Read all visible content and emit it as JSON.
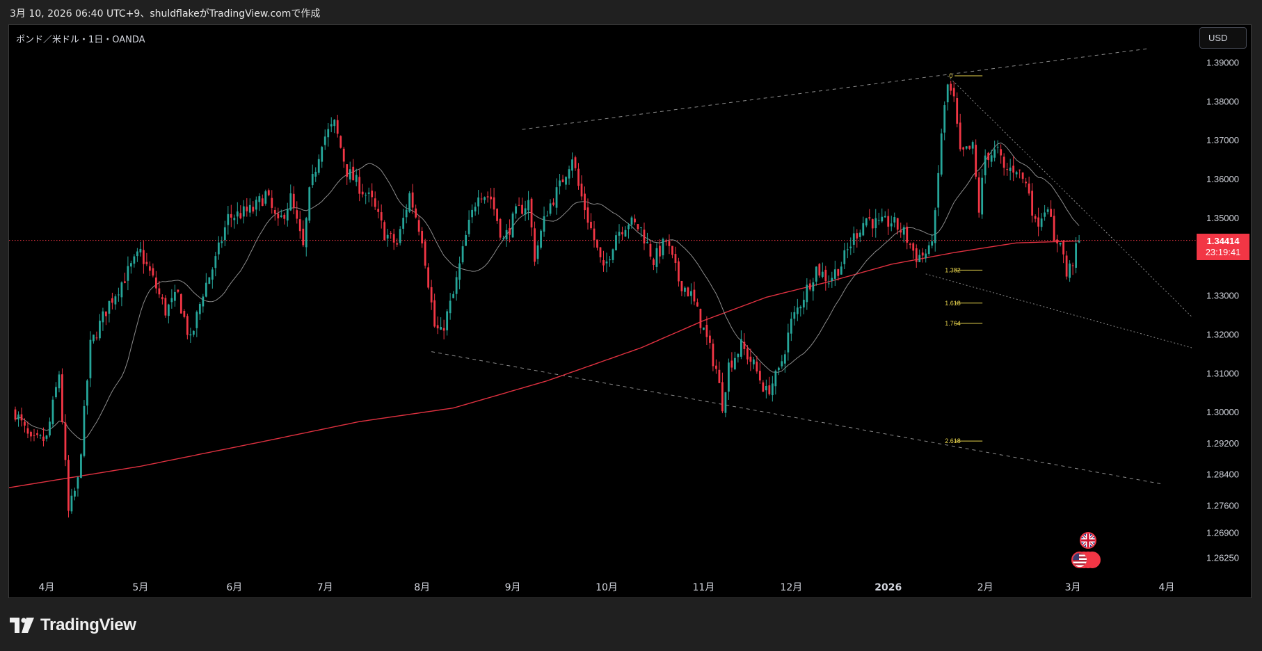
{
  "header": {
    "caption": "3月 10, 2026 06:40 UTC+9、shuldflakeがTradingView.comで作成"
  },
  "chart_header": {
    "symbol": "ポンド／米ドル・1日・OANDA",
    "currency_button": "USD"
  },
  "current_price": {
    "price": "1.34414",
    "countdown": "23:19:41",
    "value": 1.34414,
    "color": "#f23645"
  },
  "footer": {
    "brand": "TradingView"
  },
  "events": {
    "icons": [
      "uk-flag-icon",
      "us-flag-icon"
    ]
  },
  "colors": {
    "up": "#26a69a",
    "down": "#f23645",
    "ma_long": "#e03140",
    "ma_short": "#8c8c8c",
    "fib": "#e8d44d",
    "trend": "#8c8c8c"
  },
  "chart_data": {
    "type": "candlestick",
    "title": "",
    "ylim": [
      1.2585,
      1.3985
    ],
    "y_ticks": [
      "1.39000",
      "1.38000",
      "1.37000",
      "1.36000",
      "1.35000",
      "1.33000",
      "1.32000",
      "1.31000",
      "1.30000",
      "1.29200",
      "1.28400",
      "1.27600",
      "1.26900",
      "1.26250"
    ],
    "y_tick_values": [
      1.39,
      1.38,
      1.37,
      1.36,
      1.35,
      1.33,
      1.32,
      1.31,
      1.3,
      1.292,
      1.284,
      1.276,
      1.269,
      1.2625
    ],
    "x_ticks": [
      {
        "label": "4月",
        "day": 10,
        "bold": false
      },
      {
        "label": "5月",
        "day": 40,
        "bold": false
      },
      {
        "label": "6月",
        "day": 70,
        "bold": false
      },
      {
        "label": "7月",
        "day": 99,
        "bold": false
      },
      {
        "label": "8月",
        "day": 130,
        "bold": false
      },
      {
        "label": "9月",
        "day": 159,
        "bold": false
      },
      {
        "label": "10月",
        "day": 189,
        "bold": false
      },
      {
        "label": "11月",
        "day": 220,
        "bold": false
      },
      {
        "label": "12月",
        "day": 248,
        "bold": false
      },
      {
        "label": "2026",
        "day": 279,
        "bold": true
      },
      {
        "label": "2月",
        "day": 310,
        "bold": false
      },
      {
        "label": "3月",
        "day": 338,
        "bold": false
      },
      {
        "label": "4月",
        "day": 368,
        "bold": false
      }
    ],
    "day_range": [
      -2,
      376
    ],
    "price_waypoints": [
      [
        0,
        1.3
      ],
      [
        5,
        1.292
      ],
      [
        10,
        1.293
      ],
      [
        14,
        1.31
      ],
      [
        17,
        1.274
      ],
      [
        20,
        1.282
      ],
      [
        24,
        1.317
      ],
      [
        30,
        1.328
      ],
      [
        36,
        1.336
      ],
      [
        40,
        1.341
      ],
      [
        44,
        1.334
      ],
      [
        48,
        1.326
      ],
      [
        52,
        1.33
      ],
      [
        56,
        1.318
      ],
      [
        60,
        1.331
      ],
      [
        64,
        1.339
      ],
      [
        68,
        1.35
      ],
      [
        72,
        1.351
      ],
      [
        76,
        1.352
      ],
      [
        80,
        1.356
      ],
      [
        84,
        1.348
      ],
      [
        88,
        1.355
      ],
      [
        92,
        1.342
      ],
      [
        94,
        1.356
      ],
      [
        98,
        1.37
      ],
      [
        102,
        1.374
      ],
      [
        106,
        1.362
      ],
      [
        110,
        1.358
      ],
      [
        114,
        1.354
      ],
      [
        118,
        1.346
      ],
      [
        122,
        1.343
      ],
      [
        126,
        1.356
      ],
      [
        130,
        1.345
      ],
      [
        134,
        1.322
      ],
      [
        136,
        1.32
      ],
      [
        140,
        1.33
      ],
      [
        144,
        1.345
      ],
      [
        148,
        1.357
      ],
      [
        152,
        1.355
      ],
      [
        156,
        1.344
      ],
      [
        160,
        1.351
      ],
      [
        164,
        1.354
      ],
      [
        166,
        1.34
      ],
      [
        170,
        1.352
      ],
      [
        174,
        1.358
      ],
      [
        178,
        1.366
      ],
      [
        180,
        1.358
      ],
      [
        184,
        1.347
      ],
      [
        188,
        1.336
      ],
      [
        192,
        1.346
      ],
      [
        196,
        1.349
      ],
      [
        200,
        1.347
      ],
      [
        204,
        1.339
      ],
      [
        208,
        1.344
      ],
      [
        212,
        1.334
      ],
      [
        216,
        1.33
      ],
      [
        220,
        1.321
      ],
      [
        224,
        1.311
      ],
      [
        226,
        1.302
      ],
      [
        228,
        1.312
      ],
      [
        232,
        1.317
      ],
      [
        236,
        1.312
      ],
      [
        240,
        1.305
      ],
      [
        244,
        1.31
      ],
      [
        248,
        1.323
      ],
      [
        252,
        1.33
      ],
      [
        256,
        1.337
      ],
      [
        260,
        1.334
      ],
      [
        264,
        1.338
      ],
      [
        268,
        1.345
      ],
      [
        272,
        1.35
      ],
      [
        276,
        1.348
      ],
      [
        280,
        1.349
      ],
      [
        284,
        1.346
      ],
      [
        288,
        1.34
      ],
      [
        292,
        1.341
      ],
      [
        294,
        1.35
      ],
      [
        296,
        1.372
      ],
      [
        298,
        1.384
      ],
      [
        300,
        1.38
      ],
      [
        302,
        1.366
      ],
      [
        306,
        1.368
      ],
      [
        308,
        1.352
      ],
      [
        310,
        1.366
      ],
      [
        314,
        1.367
      ],
      [
        316,
        1.362
      ],
      [
        320,
        1.363
      ],
      [
        324,
        1.357
      ],
      [
        326,
        1.348
      ],
      [
        330,
        1.354
      ],
      [
        332,
        1.343
      ],
      [
        334,
        1.345
      ],
      [
        336,
        1.335
      ],
      [
        338,
        1.339
      ],
      [
        340,
        1.344
      ]
    ],
    "ma_long_waypoints": [
      [
        -2,
        1.2805
      ],
      [
        40,
        1.286
      ],
      [
        80,
        1.2925
      ],
      [
        110,
        1.2975
      ],
      [
        140,
        1.301
      ],
      [
        170,
        1.308
      ],
      [
        200,
        1.3165
      ],
      [
        220,
        1.3235
      ],
      [
        240,
        1.3295
      ],
      [
        260,
        1.3335
      ],
      [
        280,
        1.338
      ],
      [
        300,
        1.341
      ],
      [
        320,
        1.3435
      ],
      [
        340,
        1.344
      ]
    ],
    "horizontal_line": 1.34414,
    "fib_levels": [
      {
        "label": "0",
        "value": 1.3865,
        "d1": 298,
        "d2": 306
      },
      {
        "label": "1.382",
        "value": 1.3365,
        "d1": 298,
        "d2": 306
      },
      {
        "label": "1.618",
        "value": 1.328,
        "d1": 298,
        "d2": 306
      },
      {
        "label": "1.764",
        "value": 1.3228,
        "d1": 298,
        "d2": 306
      },
      {
        "label": "2.618",
        "value": 1.2925,
        "d1": 298,
        "d2": 306
      }
    ],
    "trendlines": [
      {
        "p1": [
          162,
          1.3727
        ],
        "p2": [
          362,
          1.3935
        ],
        "style": "dashed"
      },
      {
        "p1": [
          133,
          1.3155
        ],
        "p2": [
          366,
          1.2815
        ],
        "style": "dashed"
      },
      {
        "p1": [
          298,
          1.3865
        ],
        "p2": [
          376,
          1.3245
        ],
        "style": "dotted"
      },
      {
        "p1": [
          291,
          1.3355
        ],
        "p2": [
          376,
          1.3165
        ],
        "style": "dotted"
      }
    ]
  }
}
